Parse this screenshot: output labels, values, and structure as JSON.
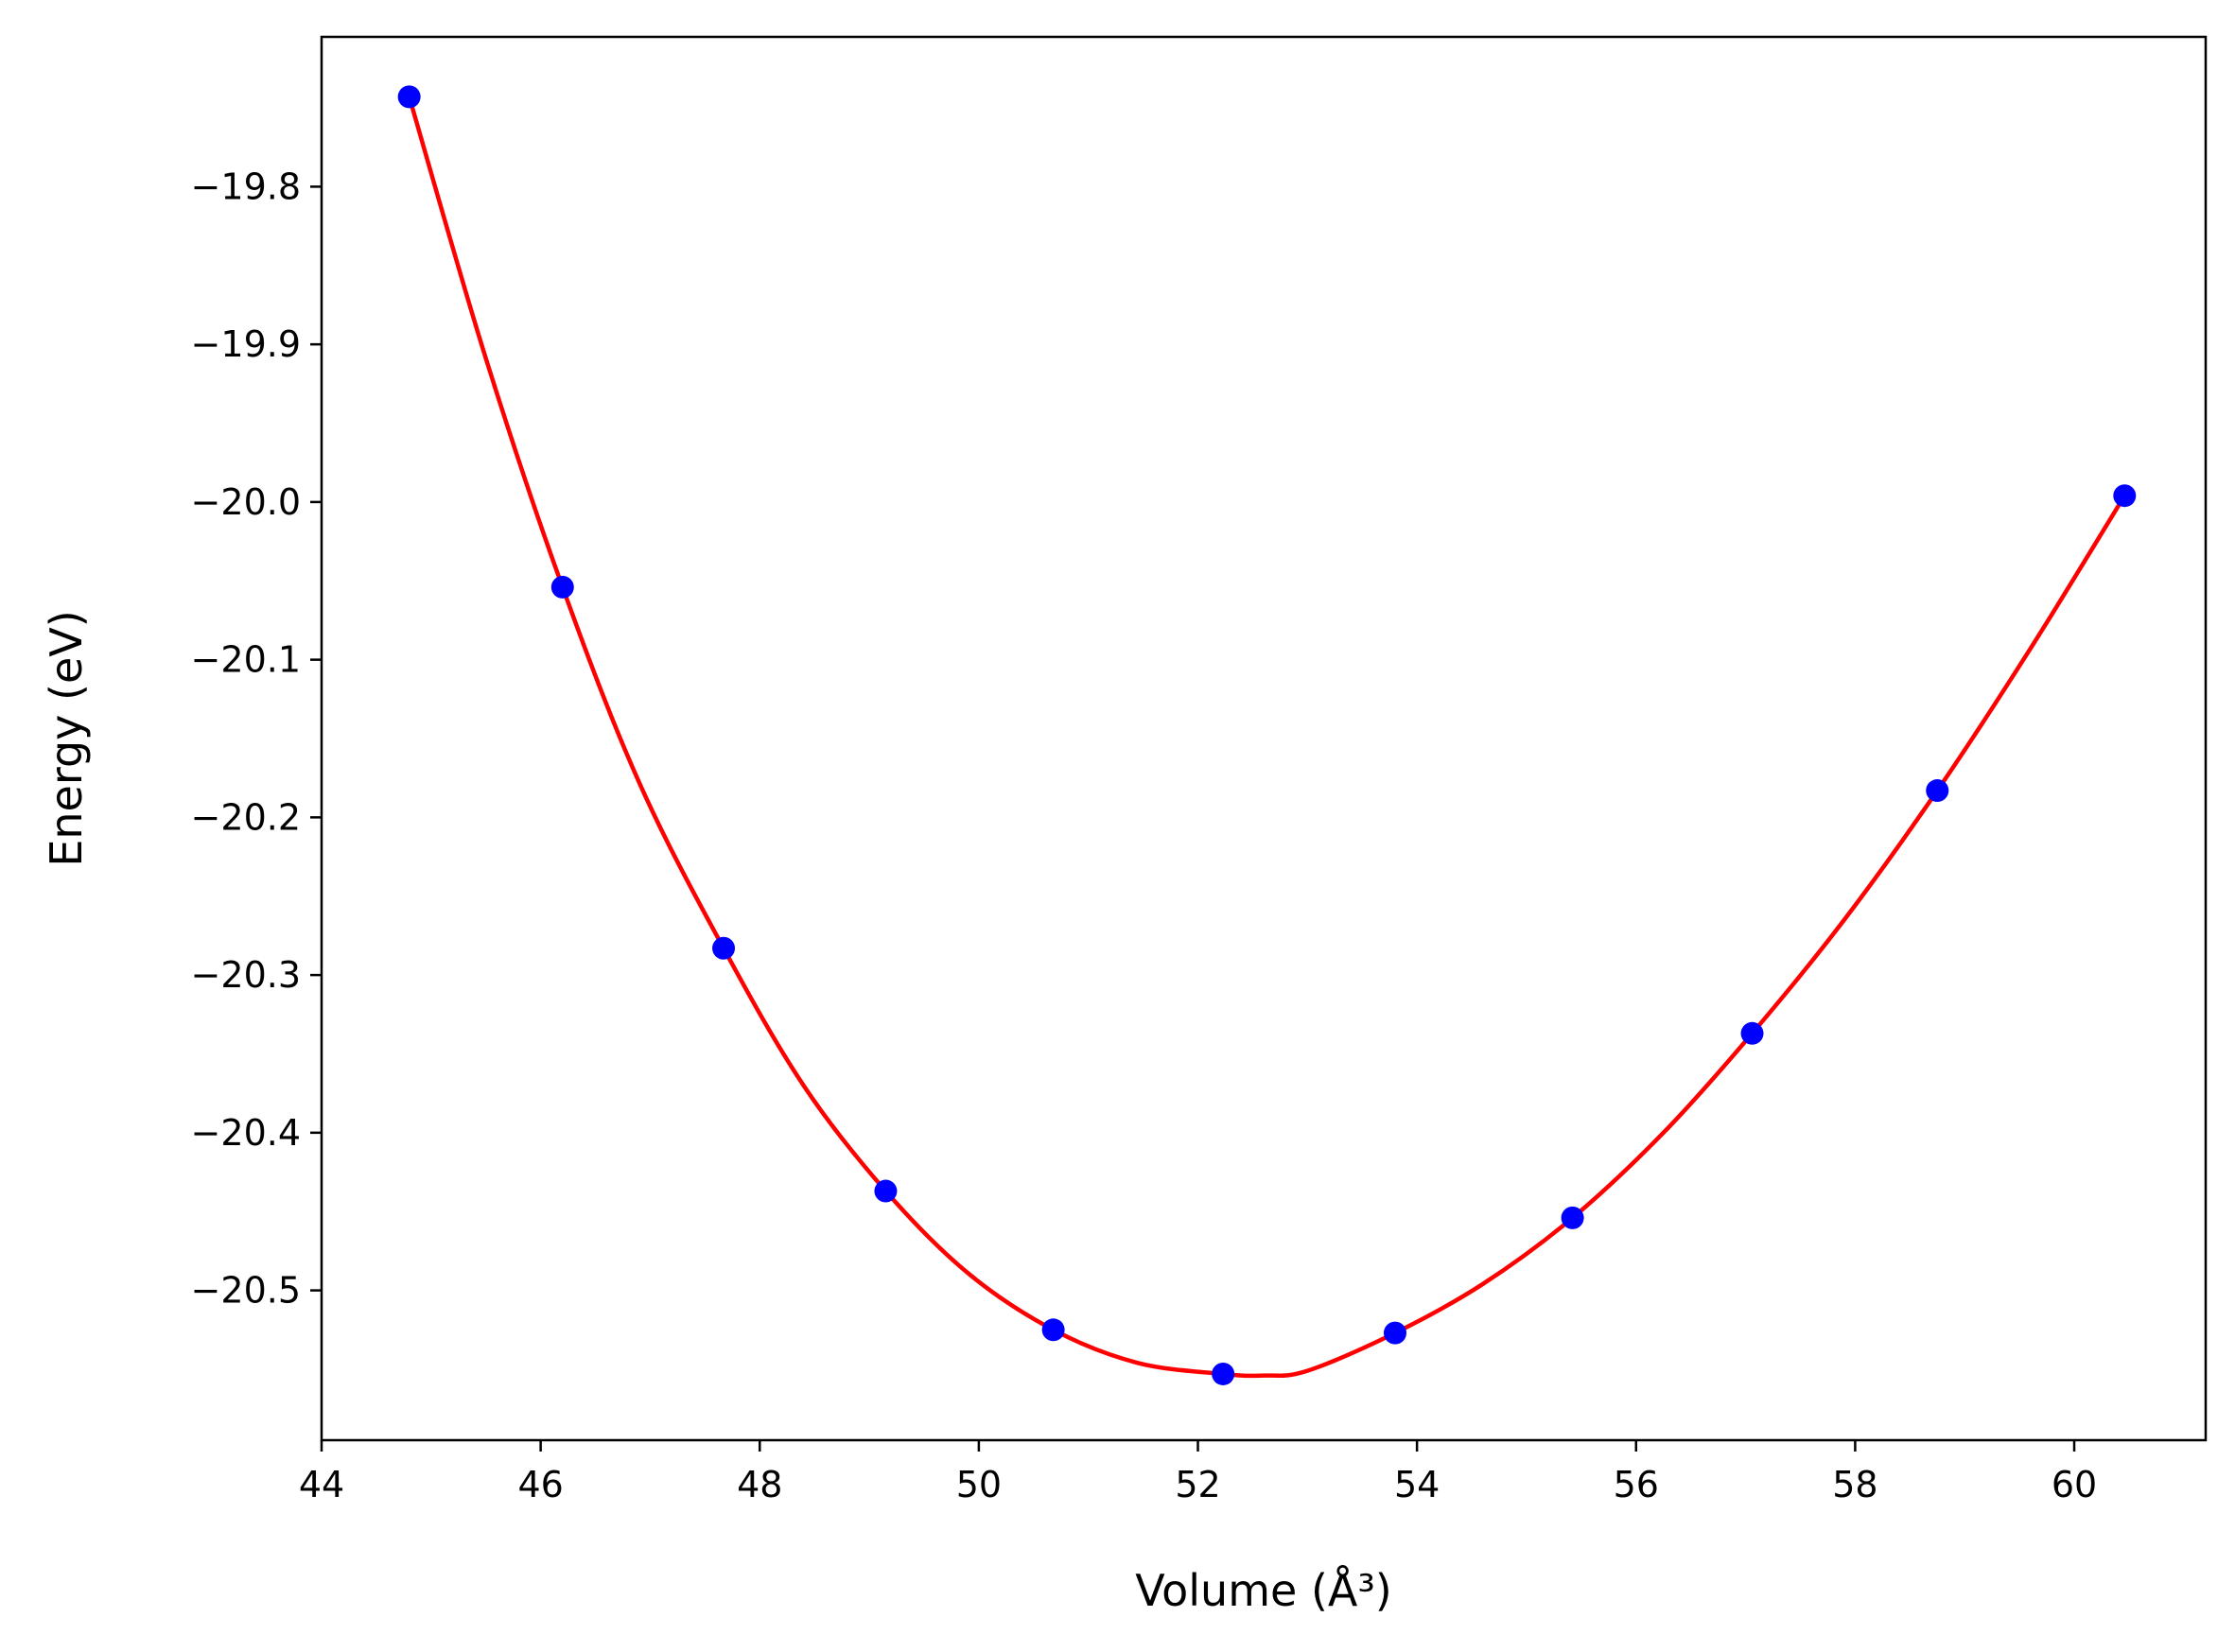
{
  "chart_data": {
    "type": "scatter",
    "xlabel": "Volume (Å³)",
    "ylabel": "Energy (eV)",
    "xlim": [
      44,
      61.2
    ],
    "ylim": [
      -20.595,
      -19.705
    ],
    "x_ticks": [
      44,
      46,
      48,
      50,
      52,
      54,
      56,
      58,
      60
    ],
    "y_ticks": [
      -19.8,
      -19.9,
      -20.0,
      -20.1,
      -20.2,
      -20.3,
      -20.4,
      -20.5
    ],
    "x_tick_labels": [
      "44",
      "46",
      "48",
      "50",
      "52",
      "54",
      "56",
      "58",
      "60"
    ],
    "y_tick_labels": [
      "−19.8",
      "−19.9",
      "−20.0",
      "−20.1",
      "−20.2",
      "−20.3",
      "−20.4",
      "−20.5"
    ],
    "grid": false,
    "series": [
      {
        "kind": "points",
        "color": "#0000ff",
        "x": [
          44.8,
          46.2,
          47.67,
          49.15,
          50.68,
          52.23,
          53.8,
          55.42,
          57.06,
          58.75,
          60.46
        ],
        "y": [
          -19.743,
          -20.054,
          -20.283,
          -20.437,
          -20.525,
          -20.553,
          -20.527,
          -20.454,
          -20.337,
          -20.183,
          -19.996
        ]
      },
      {
        "kind": "fit-line",
        "color": "#ff0000",
        "x": [
          44.8,
          45.5,
          46.2,
          46.9,
          47.67,
          48.4,
          49.15,
          49.9,
          50.68,
          51.45,
          52.23,
          52.6,
          53.0,
          53.8,
          54.6,
          55.42,
          56.25,
          57.06,
          57.9,
          58.75,
          59.6,
          60.46
        ],
        "y": [
          -19.743,
          -19.909,
          -20.054,
          -20.178,
          -20.283,
          -20.37,
          -20.437,
          -20.489,
          -20.525,
          -20.546,
          -20.553,
          -20.554,
          -20.551,
          -20.527,
          -20.496,
          -20.454,
          -20.4,
          -20.337,
          -20.265,
          -20.183,
          -20.093,
          -19.996
        ]
      }
    ]
  }
}
